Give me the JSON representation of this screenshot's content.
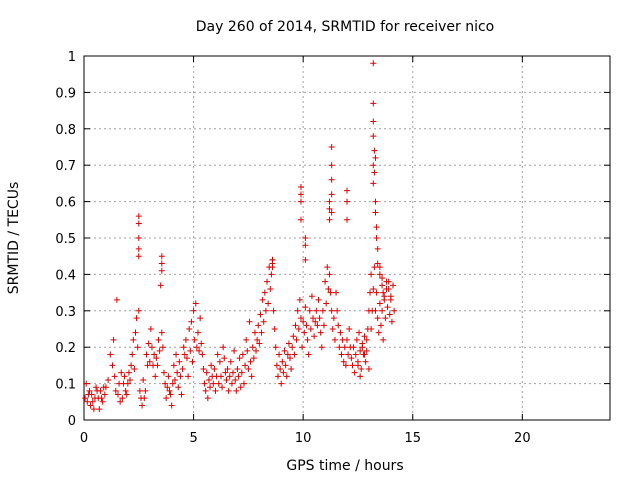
{
  "chart_data": {
    "type": "scatter",
    "title": "Day 260 of 2014, SRMTID for receiver nico",
    "xlabel": "GPS time / hours",
    "ylabel": "SRMTID / TECUs",
    "xlim": [
      0,
      24
    ],
    "ylim": [
      0,
      1
    ],
    "x_ticks": [
      0,
      5,
      10,
      15,
      20
    ],
    "x_tick_labels": [
      "0",
      "5",
      "10",
      "15",
      "20"
    ],
    "y_ticks": [
      0,
      0.1,
      0.2,
      0.3,
      0.4,
      0.5,
      0.6,
      0.7,
      0.8,
      0.9,
      1
    ],
    "y_tick_labels": [
      "0",
      "0.1",
      "0.2",
      "0.3",
      "0.4",
      "0.5",
      "0.6",
      "0.7",
      "0.8",
      "0.9",
      "1"
    ],
    "grid": true,
    "marker": "+",
    "color": "#e00000",
    "series": [
      {
        "name": "SRMTID",
        "x": [
          0.05,
          0.15,
          0.25,
          0.35,
          0.45,
          0.55,
          0.65,
          0.75,
          0.85,
          0.95,
          0.1,
          0.3,
          0.5,
          0.7,
          0.9,
          0.2,
          0.4,
          0.6,
          0.8,
          1.0,
          1.1,
          1.2,
          1.3,
          1.35,
          1.4,
          1.45,
          1.5,
          1.55,
          1.6,
          1.65,
          1.7,
          1.75,
          1.8,
          1.85,
          1.9,
          1.95,
          2.0,
          2.05,
          2.1,
          2.15,
          2.2,
          2.25,
          2.3,
          2.35,
          2.4,
          2.45,
          2.5,
          2.55,
          2.6,
          2.65,
          2.7,
          2.75,
          2.8,
          2.85,
          2.9,
          2.95,
          3.0,
          3.05,
          3.1,
          3.15,
          3.2,
          3.25,
          3.3,
          3.35,
          3.4,
          3.45,
          3.5,
          3.55,
          3.6,
          3.65,
          3.7,
          3.75,
          3.8,
          3.85,
          3.9,
          3.95,
          4.0,
          4.05,
          4.1,
          4.15,
          4.2,
          4.25,
          4.3,
          4.35,
          4.4,
          4.45,
          4.5,
          4.55,
          4.6,
          4.65,
          4.7,
          4.75,
          4.8,
          4.85,
          4.9,
          4.95,
          5.0,
          5.05,
          5.1,
          5.15,
          5.2,
          5.25,
          5.3,
          5.35,
          5.4,
          5.45,
          5.5,
          5.55,
          5.6,
          5.65,
          5.7,
          5.75,
          5.8,
          5.85,
          5.9,
          5.95,
          6.0,
          6.05,
          6.1,
          6.15,
          6.2,
          6.25,
          6.3,
          6.35,
          6.4,
          6.45,
          6.5,
          6.55,
          6.6,
          6.65,
          6.7,
          6.75,
          6.8,
          6.85,
          6.9,
          6.95,
          7.0,
          7.05,
          7.1,
          7.15,
          7.2,
          7.25,
          7.3,
          7.35,
          7.4,
          7.45,
          7.5,
          7.55,
          7.6,
          7.65,
          7.7,
          7.75,
          7.8,
          7.85,
          7.9,
          7.95,
          8.0,
          8.05,
          8.1,
          8.15,
          8.2,
          8.25,
          8.3,
          8.35,
          8.4,
          8.45,
          8.5,
          8.55,
          8.6,
          8.65,
          8.7,
          8.75,
          8.8,
          8.85,
          8.9,
          8.95,
          9.0,
          9.05,
          9.1,
          9.15,
          9.2,
          9.25,
          9.3,
          9.35,
          9.4,
          9.45,
          9.5,
          9.55,
          9.6,
          9.65,
          9.7,
          9.75,
          9.8,
          9.85,
          9.9,
          9.95,
          10.0,
          10.05,
          10.1,
          10.15,
          10.2,
          10.25,
          10.3,
          10.35,
          10.4,
          10.45,
          10.5,
          10.55,
          10.6,
          10.65,
          10.7,
          10.75,
          10.8,
          10.85,
          10.9,
          10.95,
          11.0,
          11.05,
          11.1,
          11.15,
          11.2,
          11.25,
          11.3,
          11.35,
          11.4,
          11.45,
          11.5,
          11.55,
          11.6,
          11.65,
          11.7,
          11.75,
          11.8,
          11.85,
          11.9,
          11.95,
          12.0,
          12.05,
          12.1,
          12.15,
          12.2,
          12.25,
          12.3,
          12.35,
          12.4,
          12.45,
          12.5,
          12.55,
          12.6,
          12.65,
          12.7,
          12.75,
          12.8,
          12.85,
          12.9,
          12.95,
          13.0,
          13.05,
          13.1,
          13.15,
          13.2,
          13.25,
          13.3,
          13.35,
          13.4,
          13.45,
          13.5,
          13.55,
          13.6,
          13.65,
          13.7,
          13.75,
          13.8,
          13.85,
          13.9,
          13.95,
          14.0,
          14.05,
          14.1,
          14.15,
          2.5,
          2.5,
          2.5,
          2.5,
          2.5,
          3.55,
          3.55,
          3.55,
          8.6,
          8.6,
          8.6,
          9.9,
          9.9,
          9.9,
          9.9,
          10.1,
          10.1,
          10.1,
          11.2,
          11.2,
          11.2,
          11.3,
          11.3,
          11.3,
          11.3,
          11.3,
          12.0,
          12.0,
          12.0,
          13.2,
          13.2,
          13.2,
          13.2,
          13.2,
          13.2,
          13.25,
          13.25,
          13.3,
          13.3,
          13.3,
          13.35,
          13.35,
          13.4,
          13.4,
          13.5,
          13.5,
          13.6,
          13.6,
          13.65,
          13.7,
          12.5,
          12.6,
          12.7,
          12.8,
          12.9,
          13.0,
          13.1,
          13.8,
          13.9,
          14.0
        ],
        "y": [
          0.06,
          0.05,
          0.08,
          0.07,
          0.03,
          0.09,
          0.06,
          0.08,
          0.05,
          0.07,
          0.1,
          0.04,
          0.06,
          0.03,
          0.09,
          0.07,
          0.05,
          0.08,
          0.06,
          0.09,
          0.11,
          0.18,
          0.15,
          0.22,
          0.12,
          0.08,
          0.33,
          0.07,
          0.1,
          0.05,
          0.13,
          0.06,
          0.1,
          0.12,
          0.08,
          0.07,
          0.1,
          0.13,
          0.11,
          0.15,
          0.18,
          0.22,
          0.14,
          0.24,
          0.28,
          0.2,
          0.3,
          0.08,
          0.06,
          0.04,
          0.11,
          0.06,
          0.08,
          0.18,
          0.15,
          0.21,
          0.16,
          0.25,
          0.2,
          0.15,
          0.18,
          0.12,
          0.17,
          0.15,
          0.22,
          0.19,
          0.37,
          0.24,
          0.2,
          0.13,
          0.1,
          0.06,
          0.09,
          0.12,
          0.08,
          0.07,
          0.04,
          0.1,
          0.15,
          0.11,
          0.18,
          0.13,
          0.09,
          0.16,
          0.12,
          0.07,
          0.14,
          0.2,
          0.18,
          0.22,
          0.17,
          0.12,
          0.25,
          0.19,
          0.27,
          0.16,
          0.3,
          0.22,
          0.32,
          0.2,
          0.24,
          0.19,
          0.28,
          0.21,
          0.18,
          0.14,
          0.1,
          0.08,
          0.13,
          0.06,
          0.11,
          0.09,
          0.15,
          0.12,
          0.1,
          0.14,
          0.08,
          0.12,
          0.18,
          0.1,
          0.16,
          0.12,
          0.09,
          0.2,
          0.17,
          0.13,
          0.11,
          0.14,
          0.08,
          0.12,
          0.16,
          0.1,
          0.13,
          0.19,
          0.11,
          0.08,
          0.14,
          0.12,
          0.17,
          0.09,
          0.13,
          0.18,
          0.1,
          0.15,
          0.22,
          0.19,
          0.14,
          0.27,
          0.16,
          0.12,
          0.2,
          0.17,
          0.24,
          0.19,
          0.22,
          0.26,
          0.21,
          0.29,
          0.24,
          0.33,
          0.27,
          0.35,
          0.3,
          0.38,
          0.32,
          0.42,
          0.36,
          0.4,
          0.44,
          0.3,
          0.25,
          0.2,
          0.15,
          0.12,
          0.18,
          0.14,
          0.1,
          0.16,
          0.13,
          0.19,
          0.15,
          0.12,
          0.18,
          0.21,
          0.17,
          0.14,
          0.2,
          0.23,
          0.18,
          0.26,
          0.22,
          0.3,
          0.25,
          0.33,
          0.28,
          0.2,
          0.27,
          0.24,
          0.31,
          0.26,
          0.22,
          0.18,
          0.3,
          0.25,
          0.34,
          0.28,
          0.23,
          0.27,
          0.3,
          0.26,
          0.33,
          0.28,
          0.24,
          0.2,
          0.3,
          0.26,
          0.38,
          0.32,
          0.42,
          0.36,
          0.4,
          0.35,
          0.3,
          0.25,
          0.28,
          0.22,
          0.35,
          0.3,
          0.26,
          0.2,
          0.24,
          0.18,
          0.22,
          0.16,
          0.2,
          0.15,
          0.22,
          0.18,
          0.25,
          0.2,
          0.17,
          0.15,
          0.2,
          0.13,
          0.18,
          0.22,
          0.16,
          0.24,
          0.19,
          0.14,
          0.21,
          0.18,
          0.23,
          0.16,
          0.19,
          0.25,
          0.3,
          0.35,
          0.4,
          0.3,
          0.36,
          0.42,
          0.3,
          0.35,
          0.28,
          0.24,
          0.32,
          0.26,
          0.3,
          0.22,
          0.34,
          0.28,
          0.38,
          0.31,
          0.36,
          0.29,
          0.33,
          0.27,
          0.37,
          0.3,
          0.56,
          0.54,
          0.5,
          0.47,
          0.45,
          0.45,
          0.43,
          0.41,
          0.44,
          0.43,
          0.42,
          0.64,
          0.62,
          0.6,
          0.55,
          0.5,
          0.48,
          0.44,
          0.6,
          0.58,
          0.55,
          0.75,
          0.7,
          0.66,
          0.62,
          0.57,
          0.63,
          0.6,
          0.55,
          0.98,
          0.87,
          0.82,
          0.78,
          0.7,
          0.65,
          0.74,
          0.68,
          0.72,
          0.6,
          0.57,
          0.53,
          0.5,
          0.47,
          0.43,
          0.42,
          0.4,
          0.39,
          0.37,
          0.35,
          0.33,
          0.15,
          0.12,
          0.2,
          0.18,
          0.22,
          0.14,
          0.25,
          0.36,
          0.38,
          0.34
        ]
      }
    ]
  }
}
